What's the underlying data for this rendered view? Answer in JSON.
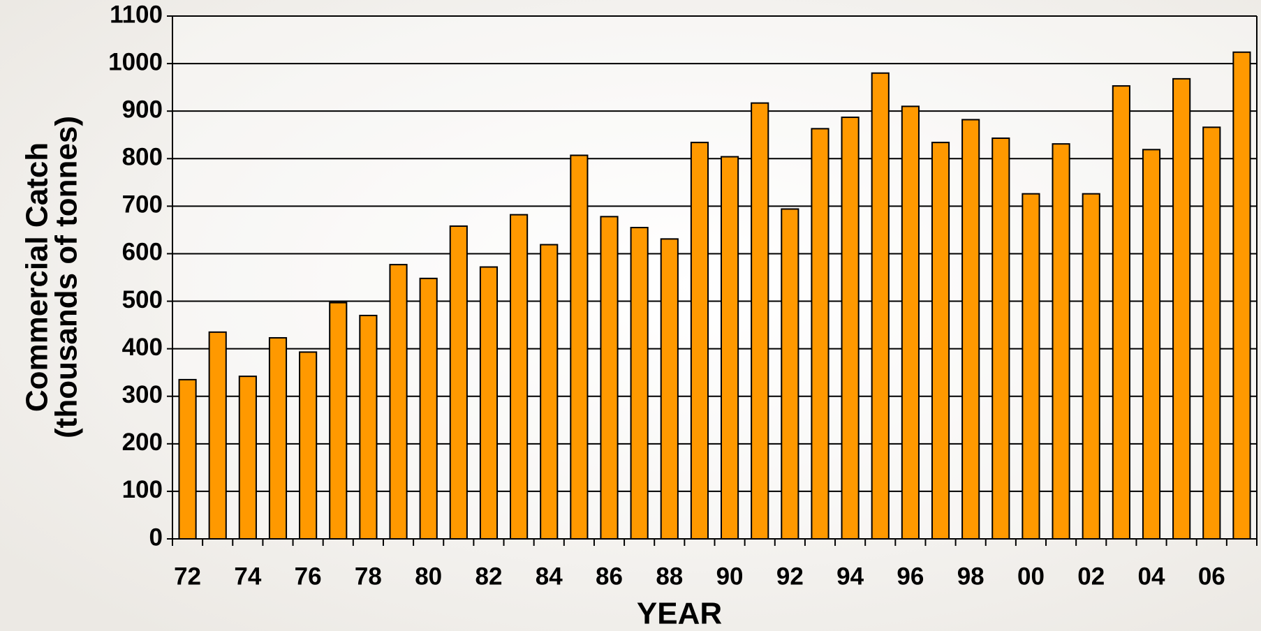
{
  "chart_data": {
    "type": "bar",
    "ylabel_lines": [
      "Commercial Catch",
      "(thousands of tonnes)"
    ],
    "xlabel": "YEAR",
    "categories": [
      "72",
      null,
      "74",
      null,
      "76",
      null,
      "78",
      null,
      "80",
      null,
      "82",
      null,
      "84",
      null,
      "86",
      null,
      "88",
      null,
      "90",
      null,
      "92",
      null,
      "94",
      null,
      "96",
      null,
      "98",
      null,
      "00",
      null,
      "02",
      null,
      "04",
      null,
      "06",
      null
    ],
    "values": [
      335,
      435,
      342,
      423,
      393,
      497,
      470,
      577,
      548,
      658,
      572,
      682,
      619,
      807,
      678,
      655,
      631,
      834,
      804,
      917,
      694,
      863,
      887,
      980,
      910,
      834,
      882,
      843,
      726,
      831,
      726,
      953,
      819,
      968,
      866,
      1024
    ],
    "color": "#ff9900",
    "ylim": [
      0,
      1100
    ],
    "yticks": [
      0,
      100,
      200,
      300,
      400,
      500,
      600,
      700,
      800,
      900,
      1000,
      1100
    ],
    "grid": true
  }
}
